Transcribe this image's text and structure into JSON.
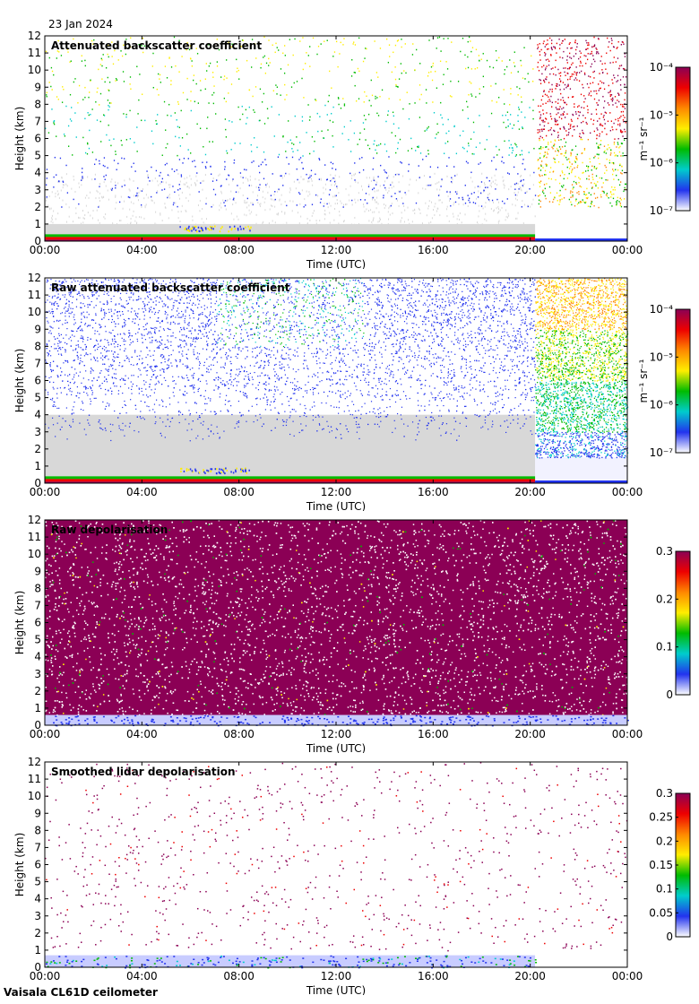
{
  "date": "23 Jan 2024",
  "footer": "Vaisala CL61D ceilometer",
  "colors": {
    "axis": "#000000",
    "no_data_gray": "#d8d8d8",
    "colormap": [
      "#ffffff",
      "#2233ee",
      "#00cccc",
      "#00bb00",
      "#ffee00",
      "#ff8800",
      "#ee0000",
      "#8b0055"
    ]
  },
  "chart_data": [
    {
      "type": "heatmap",
      "title": "Attenuated backscatter coefficient",
      "xlabel": "Time (UTC)",
      "ylabel": "Height (km)",
      "x_ticks": [
        "00:00",
        "04:00",
        "08:00",
        "12:00",
        "16:00",
        "20:00",
        "00:00"
      ],
      "xlim_hours": [
        0,
        24
      ],
      "ylim": [
        0,
        12
      ],
      "y_ticks": [
        0,
        1,
        2,
        3,
        4,
        5,
        6,
        7,
        8,
        9,
        10,
        11,
        12
      ],
      "colorbar": {
        "scale": "log",
        "range": [
          1e-07,
          0.0001
        ],
        "ticks": [
          "10⁻⁴",
          "10⁻⁵",
          "10⁻⁶",
          "10⁻⁷"
        ],
        "units": "m⁻¹ sr⁻¹"
      },
      "features": {
        "boundary_layer_top_km": 0.4,
        "gray_noise_top_km": 1.0,
        "sparse_signal_km": [
          1,
          12
        ],
        "regime_change_hour": 20.2
      }
    },
    {
      "type": "heatmap",
      "title": "Raw attenuated backscatter coefficient",
      "xlabel": "Time (UTC)",
      "ylabel": "Height (km)",
      "x_ticks": [
        "00:00",
        "04:00",
        "08:00",
        "12:00",
        "16:00",
        "20:00",
        "00:00"
      ],
      "xlim_hours": [
        0,
        24
      ],
      "ylim": [
        0,
        12
      ],
      "y_ticks": [
        0,
        1,
        2,
        3,
        4,
        5,
        6,
        7,
        8,
        9,
        10,
        11,
        12
      ],
      "colorbar": {
        "scale": "log",
        "range": [
          1e-07,
          0.0001
        ],
        "ticks": [
          "10⁻⁴",
          "10⁻⁵",
          "10⁻⁶",
          "10⁻⁷"
        ],
        "units": "m⁻¹ sr⁻¹"
      },
      "features": {
        "boundary_layer_top_km": 0.4,
        "dense_blue_noise_km": [
          3,
          12
        ],
        "regime_change_hour": 20.2
      }
    },
    {
      "type": "heatmap",
      "title": "Raw depolarisation",
      "xlabel": "Time (UTC)",
      "ylabel": "Height (km)",
      "x_ticks": [
        "00:00",
        "04:00",
        "08:00",
        "12:00",
        "16:00",
        "20:00",
        "00:00"
      ],
      "xlim_hours": [
        0,
        24
      ],
      "ylim": [
        0,
        12
      ],
      "y_ticks": [
        0,
        1,
        2,
        3,
        4,
        5,
        6,
        7,
        8,
        9,
        10,
        11,
        12
      ],
      "colorbar": {
        "scale": "linear",
        "range": [
          0,
          0.3
        ],
        "ticks": [
          "0.3",
          "0.2",
          "0.1",
          "0"
        ]
      },
      "features": {
        "boundary_layer_top_km": 0.6,
        "saturated_noise_km": [
          0.6,
          12
        ]
      }
    },
    {
      "type": "heatmap",
      "title": "Smoothed lidar depolarisation",
      "xlabel": "Time (UTC)",
      "ylabel": "Height (km)",
      "x_ticks": [
        "00:00",
        "04:00",
        "08:00",
        "12:00",
        "16:00",
        "20:00",
        "00:00"
      ],
      "xlim_hours": [
        0,
        24
      ],
      "ylim": [
        0,
        12
      ],
      "y_ticks": [
        0,
        1,
        2,
        3,
        4,
        5,
        6,
        7,
        8,
        9,
        10,
        11,
        12
      ],
      "colorbar": {
        "scale": "linear",
        "range": [
          0,
          0.3
        ],
        "ticks": [
          "0.3",
          "0.25",
          "0.2",
          "0.15",
          "0.1",
          "0.05",
          "0"
        ]
      },
      "features": {
        "boundary_layer_top_km": 0.7,
        "sparse_signal_km": [
          1,
          12
        ],
        "regime_change_hour": 20.2
      }
    }
  ]
}
